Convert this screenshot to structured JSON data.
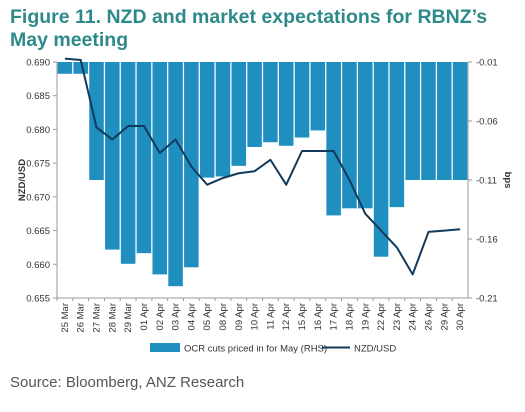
{
  "title": "Figure 11. NZD and market expectations for RBNZ’s May meeting",
  "source": "Source: Bloomberg, ANZ Research",
  "chart_data": {
    "type": "bar+line",
    "categories": [
      "25 Mar",
      "26 Mar",
      "27 Mar",
      "28 Mar",
      "29 Mar",
      "01 Apr",
      "02 Apr",
      "03 Apr",
      "04 Apr",
      "05 Apr",
      "08 Apr",
      "09 Apr",
      "10 Apr",
      "11 Apr",
      "12 Apr",
      "15 Apr",
      "16 Apr",
      "17 Apr",
      "18 Apr",
      "19 Apr",
      "22 Apr",
      "23 Apr",
      "24 Apr",
      "26 Apr",
      "29 Apr",
      "30 Apr"
    ],
    "series": [
      {
        "name": "OCR cuts priced in for May (RHS)",
        "type": "bar",
        "axis": "right",
        "color": "#1f8fbf",
        "values": [
          -0.02,
          -0.02,
          -0.11,
          -0.169,
          -0.181,
          -0.172,
          -0.19,
          -0.2,
          -0.184,
          -0.108,
          -0.107,
          -0.098,
          -0.082,
          -0.078,
          -0.081,
          -0.074,
          -0.068,
          -0.14,
          -0.134,
          -0.134,
          -0.175,
          -0.133,
          -0.11,
          -0.11,
          -0.11,
          -0.11
        ]
      },
      {
        "name": "NZD/USD",
        "type": "line",
        "axis": "left",
        "color": "#123a5c",
        "values": [
          0.6905,
          0.6903,
          0.6803,
          0.6785,
          0.6805,
          0.6805,
          0.6765,
          0.6785,
          0.6745,
          0.6718,
          0.6728,
          0.6735,
          0.6738,
          0.6755,
          0.6718,
          0.6768,
          0.6768,
          0.6768,
          0.6725,
          0.6675,
          0.665,
          0.6625,
          0.6585,
          0.6648,
          0.665,
          0.6652
        ]
      }
    ],
    "left_axis": {
      "label": "NZD/USD",
      "ylim": [
        0.655,
        0.69
      ],
      "ticks": [
        "0.655",
        "0.660",
        "0.665",
        "0.670",
        "0.675",
        "0.680",
        "0.685",
        "0.690"
      ]
    },
    "right_axis": {
      "label": "bps",
      "ylim": [
        -0.21,
        -0.01
      ],
      "ticks": [
        "-0.01",
        "-0.06",
        "-0.11",
        "-0.16",
        "-0.21"
      ]
    },
    "legend": [
      "OCR cuts priced in for May (RHS)",
      "NZD/USD"
    ],
    "legend_position": "bottom"
  }
}
